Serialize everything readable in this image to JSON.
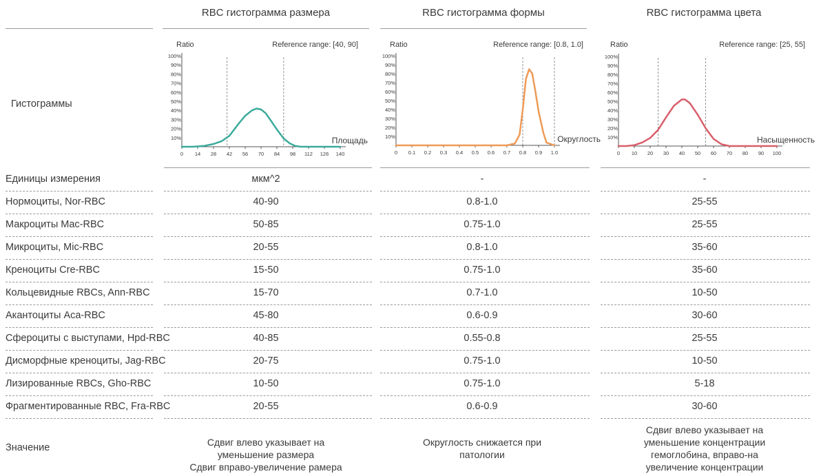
{
  "columns": [
    {
      "title": "RBC гистограмма размера"
    },
    {
      "title": "RBC гистограмма формы"
    },
    {
      "title": "RBC гистограмма цвета"
    }
  ],
  "histograms_label": "Гистограммы",
  "table": {
    "rows": [
      {
        "label": "Единицы измерения",
        "values": [
          "мкм^2",
          "-",
          "-"
        ]
      },
      {
        "label": "Нормоциты, Nor-RBC",
        "values": [
          "40-90",
          "0.8-1.0",
          "25-55"
        ]
      },
      {
        "label": "Макроциты Mac-RBC",
        "values": [
          "50-85",
          "0.75-1.0",
          "25-55"
        ]
      },
      {
        "label": "Микроциты, Mic-RBC",
        "values": [
          "20-55",
          "0.8-1.0",
          "35-60"
        ]
      },
      {
        "label": "Креноциты Cre-RBC",
        "values": [
          "15-50",
          "0.75-1.0",
          "35-60"
        ]
      },
      {
        "label": "Кольцевидные RBCs, Ann-RBC",
        "values": [
          "15-70",
          "0.7-1.0",
          "10-50"
        ]
      },
      {
        "label": "Акантоциты Aca-RBC",
        "values": [
          "45-80",
          "0.6-0.9",
          "30-60"
        ]
      },
      {
        "label": "Сфероциты с выступами, Hpd-RBC",
        "values": [
          "40-85",
          "0.55-0.8",
          "25-55"
        ]
      },
      {
        "label": "Дисморфные креноциты, Jag-RBC",
        "values": [
          "20-75",
          "0.75-1.0",
          "10-50"
        ]
      },
      {
        "label": "Лизированные RBCs, Gho-RBC",
        "values": [
          "10-50",
          "0.75-1.0",
          "5-18"
        ]
      },
      {
        "label": "Фрагментированные RBC, Fra-RBC",
        "values": [
          "20-55",
          "0.6-0.9",
          "30-60"
        ]
      }
    ],
    "meaning": {
      "label": "Значение",
      "texts": [
        [
          "Сдвиг влево указывает на",
          "уменьшение размера",
          "Сдвиг вправо-увеличение рамера"
        ],
        [
          "Округлость снижается при",
          "патологии"
        ],
        [
          "Сдвиг влево указывает на",
          "уменьшение концентрации",
          "гемоглобина, вправо-на",
          "увеличение концентрации"
        ]
      ]
    }
  },
  "chart_data": [
    {
      "type": "line",
      "ylabel": "Ratio",
      "xlabel": "Площадь",
      "reference_text": "Reference range: [40, 90]",
      "reference_lines": [
        40,
        90
      ],
      "color": "#3aaa9c",
      "xlim": [
        0,
        140
      ],
      "ylim": [
        0,
        100
      ],
      "x_ticks": [
        0,
        14,
        28,
        42,
        56,
        70,
        84,
        98,
        112,
        126,
        140
      ],
      "y_ticks": [
        "10%",
        "20%",
        "30%",
        "40%",
        "50%",
        "60%",
        "70%",
        "80%",
        "90%",
        "100%"
      ],
      "x": [
        0,
        10,
        20,
        28,
        35,
        42,
        50,
        56,
        62,
        66,
        70,
        74,
        78,
        84,
        90,
        95,
        100,
        105,
        112,
        126,
        140
      ],
      "y": [
        0,
        0,
        1,
        3,
        6,
        12,
        25,
        34,
        40,
        42,
        41,
        37,
        30,
        19,
        9,
        4,
        1,
        0,
        0,
        0,
        0
      ]
    },
    {
      "type": "line",
      "ylabel": "Ratio",
      "xlabel": "Округлость",
      "reference_text": "Reference range: [0.8, 1.0]",
      "reference_lines": [
        0.8,
        1.0
      ],
      "color": "#ee9a56",
      "xlim": [
        0,
        1.0
      ],
      "ylim": [
        0,
        100
      ],
      "x_ticks": [
        "0",
        "0.1",
        "0.2",
        "0.3",
        "0.4",
        "0.5",
        "0.6",
        "0.7",
        "0.8",
        "0.9",
        "1.0"
      ],
      "y_ticks": [
        "10%",
        "20%",
        "30%",
        "40%",
        "50%",
        "60%",
        "70%",
        "80%",
        "90%",
        "100%"
      ],
      "x": [
        0,
        0.1,
        0.2,
        0.3,
        0.4,
        0.5,
        0.6,
        0.7,
        0.75,
        0.78,
        0.8,
        0.82,
        0.84,
        0.86,
        0.88,
        0.9,
        0.93,
        0.95,
        1.0
      ],
      "y": [
        0,
        0,
        0,
        0,
        0,
        0,
        0,
        0,
        2,
        12,
        40,
        74,
        85,
        80,
        60,
        38,
        14,
        3,
        0
      ]
    },
    {
      "type": "line",
      "ylabel": "Ratio",
      "xlabel": "Насыщенность",
      "reference_text": "Reference range: [25, 55]",
      "reference_lines": [
        25,
        55
      ],
      "color": "#d95e6a",
      "xlim": [
        0,
        100
      ],
      "ylim": [
        0,
        100
      ],
      "x_ticks": [
        "0",
        "10",
        "20",
        "30",
        "40",
        "50",
        "60",
        "70",
        "80",
        "90",
        "100"
      ],
      "y_ticks": [
        "10%",
        "20%",
        "30%",
        "40%",
        "50%",
        "60%",
        "70%",
        "80%",
        "90%",
        "100%"
      ],
      "x": [
        0,
        5,
        10,
        15,
        20,
        25,
        30,
        35,
        40,
        42,
        45,
        50,
        55,
        60,
        65,
        70,
        80,
        90,
        100
      ],
      "y": [
        0,
        0,
        1,
        4,
        9,
        18,
        32,
        45,
        52,
        52,
        48,
        35,
        20,
        8,
        2,
        0,
        0,
        0,
        0
      ]
    }
  ]
}
